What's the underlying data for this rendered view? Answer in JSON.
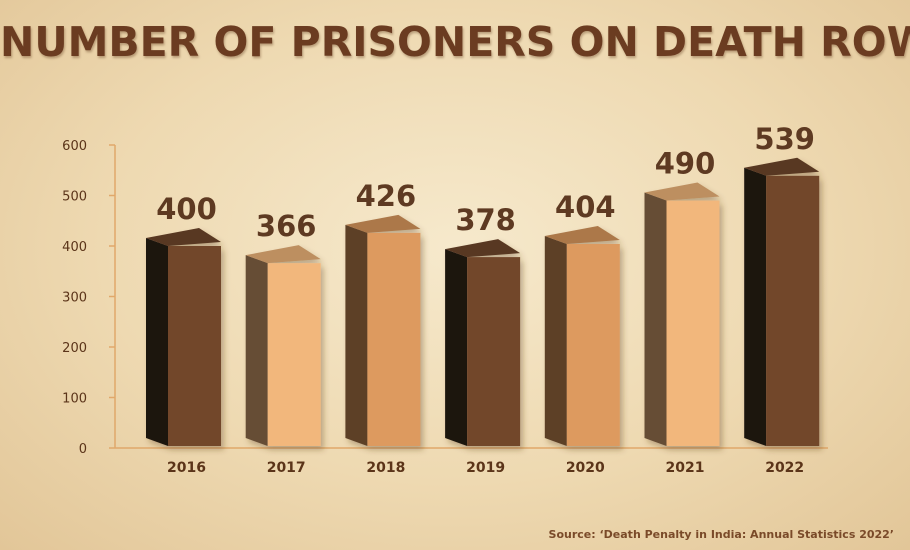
{
  "chart_data": {
    "type": "bar",
    "title": "NUMBER OF PRISONERS ON DEATH ROW",
    "categories": [
      "2016",
      "2017",
      "2018",
      "2019",
      "2020",
      "2021",
      "2022"
    ],
    "values": [
      400,
      366,
      426,
      378,
      404,
      490,
      539
    ],
    "value_labels": [
      "400",
      "366",
      "426",
      "378",
      "404",
      "490",
      "539"
    ],
    "y_ticks": [
      "0",
      "100",
      "200",
      "300",
      "400",
      "500",
      "600"
    ],
    "ylim": [
      0,
      600
    ],
    "xlabel": "",
    "ylabel": "",
    "grid": false,
    "bar_colors": [
      "#72472a",
      "#f2b77c",
      "#dd9a5f",
      "#72472a",
      "#dd9a5f",
      "#f2b77c",
      "#72472a"
    ],
    "source": "Source: ‘Death Penalty in India: Annual Statistics 2022’"
  },
  "colors": {
    "title": "#6b3c21",
    "axis": "#e0a86a",
    "tick_label": "#5b3419",
    "value_label": "#5e3a22",
    "bar_side": "#3a2416",
    "bar_side_dark": "#1f130c"
  }
}
